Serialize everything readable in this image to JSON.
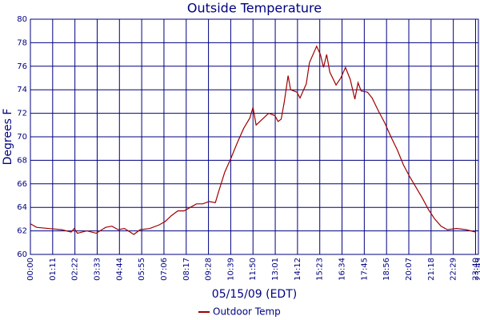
{
  "chart_data": {
    "type": "line",
    "title": "Outside Temperature",
    "ylabel": "Degrees F",
    "xlabel": "05/15/09 (EDT)",
    "x": [
      0,
      20,
      60,
      100,
      130,
      140,
      150,
      180,
      210,
      240,
      260,
      280,
      300,
      330,
      350,
      380,
      410,
      430,
      450,
      470,
      490,
      510,
      530,
      550,
      570,
      590,
      600,
      620,
      640,
      660,
      680,
      700,
      710,
      720,
      740,
      760,
      780,
      790,
      800,
      810,
      822,
      830,
      850,
      860,
      880,
      890,
      913,
      925,
      935,
      945,
      955,
      975,
      990,
      1005,
      1020,
      1035,
      1045,
      1055,
      1075,
      1090,
      1110,
      1130,
      1150,
      1170,
      1190,
      1210,
      1230,
      1250,
      1270,
      1290,
      1310,
      1330,
      1360,
      1390,
      1420
    ],
    "series": [
      {
        "name": "Outdoor Temp",
        "color": "#a00000",
        "values": [
          62.6,
          62.3,
          62.2,
          62.1,
          61.9,
          62.2,
          61.8,
          62.0,
          61.8,
          62.3,
          62.4,
          62.1,
          62.2,
          61.7,
          62.1,
          62.2,
          62.5,
          62.8,
          63.3,
          63.7,
          63.7,
          64.0,
          64.3,
          64.3,
          64.5,
          64.4,
          65.3,
          67.0,
          68.2,
          69.5,
          70.7,
          71.6,
          72.5,
          71.0,
          71.5,
          72.0,
          71.8,
          71.3,
          71.5,
          73.0,
          75.2,
          74.0,
          73.8,
          73.3,
          74.5,
          76.3,
          77.7,
          77.0,
          75.9,
          77.0,
          75.5,
          74.4,
          75.0,
          75.9,
          74.9,
          73.2,
          74.6,
          73.9,
          73.8,
          73.3,
          72.2,
          71.2,
          70.0,
          68.9,
          67.6,
          66.6,
          65.7,
          64.8,
          63.8,
          63.0,
          62.4,
          62.1,
          62.2,
          62.1,
          61.9
        ]
      }
    ],
    "xlim": [
      0,
      1429
    ],
    "xticks": [
      {
        "value": 0,
        "label": "00:00"
      },
      {
        "value": 71,
        "label": "01:11"
      },
      {
        "value": 142,
        "label": "02:22"
      },
      {
        "value": 213,
        "label": "03:33"
      },
      {
        "value": 284,
        "label": "04:44"
      },
      {
        "value": 355,
        "label": "05:55"
      },
      {
        "value": 426,
        "label": "07:06"
      },
      {
        "value": 497,
        "label": "08:17"
      },
      {
        "value": 568,
        "label": "09:28"
      },
      {
        "value": 639,
        "label": "10:39"
      },
      {
        "value": 710,
        "label": "11:50"
      },
      {
        "value": 781,
        "label": "13:01"
      },
      {
        "value": 852,
        "label": "14:12"
      },
      {
        "value": 923,
        "label": "15:23"
      },
      {
        "value": 994,
        "label": "16:34"
      },
      {
        "value": 1065,
        "label": "17:45"
      },
      {
        "value": 1136,
        "label": "18:56"
      },
      {
        "value": 1207,
        "label": "20:07"
      },
      {
        "value": 1278,
        "label": "21:18"
      },
      {
        "value": 1349,
        "label": "22:29"
      },
      {
        "value": 1420,
        "label": "23:40"
      },
      {
        "value": 1429,
        "label": "23:49"
      }
    ],
    "ylim": [
      60,
      80
    ],
    "yticks": [
      60,
      62,
      64,
      66,
      68,
      70,
      72,
      74,
      76,
      78,
      80
    ],
    "grid": true,
    "legend": "bottom"
  }
}
